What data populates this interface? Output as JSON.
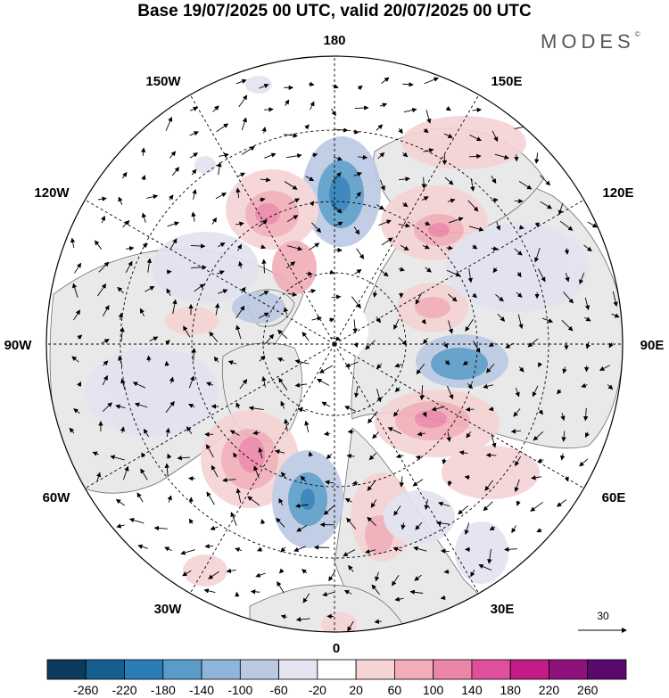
{
  "title": "Base 19/07/2025 00 UTC, valid 20/07/2025 00 UTC",
  "brand": "MODES",
  "brand_mark": "©",
  "longitude_labels": {
    "top": "180",
    "w150": "150W",
    "e150": "150E",
    "w120": "120W",
    "e120": "120E",
    "w90": "90W",
    "e90": "90E",
    "w60": "60W",
    "e60": "60E",
    "w30": "30W",
    "e30": "30E",
    "bottom": "0"
  },
  "reference_vector": {
    "label": "30",
    "icon": "arrow-right-icon"
  },
  "colorbar": {
    "colors": [
      "#0b3a5e",
      "#155f8f",
      "#2b7db7",
      "#5a9cc8",
      "#8fb6da",
      "#bcc9e3",
      "#e3e3f1",
      "#ffffff",
      "#f6d3d5",
      "#f1aeb8",
      "#ec86a8",
      "#df4f9b",
      "#c31c86",
      "#8e117c",
      "#5a0a6e"
    ],
    "labels": [
      "-260",
      "-220",
      "-180",
      "-140",
      "-100",
      "-60",
      "-20",
      "20",
      "60",
      "100",
      "140",
      "180",
      "220",
      "260"
    ]
  }
}
